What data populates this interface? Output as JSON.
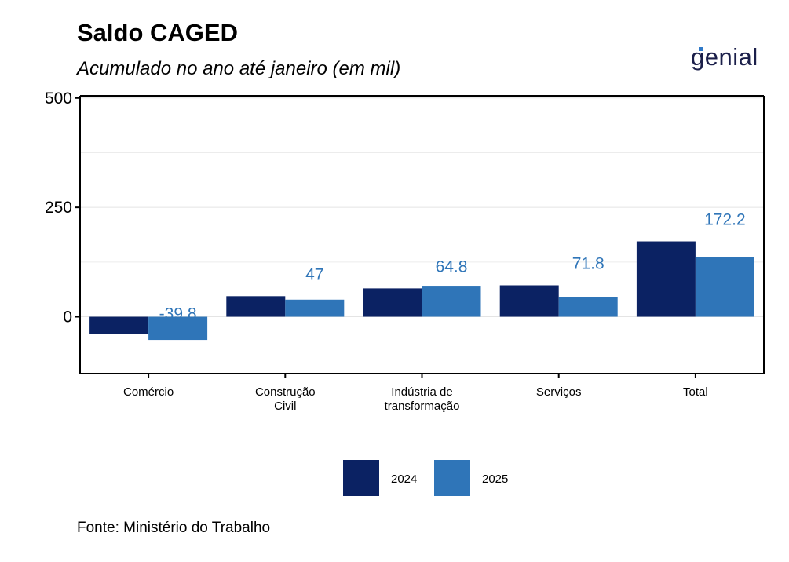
{
  "header": {
    "title": "Saldo CAGED",
    "subtitle": "Acumulado no ano até janeiro (em mil)",
    "logo": "genial"
  },
  "footer": {
    "source": "Fonte: Ministério do Trabalho"
  },
  "colors": {
    "s2024": "#0b2263",
    "s2025": "#2f75b8",
    "label": "#2f75b8"
  },
  "chart_data": {
    "type": "bar",
    "title": "Saldo CAGED",
    "subtitle": "Acumulado no ano até janeiro (em mil)",
    "categories": [
      [
        "Comércio"
      ],
      [
        "Construção",
        "Civil"
      ],
      [
        "Indústria de",
        "transformação"
      ],
      [
        "Serviços"
      ],
      [
        "Total"
      ]
    ],
    "series": [
      {
        "name": "2024",
        "values": [
          -39.8,
          47,
          64.8,
          71.8,
          172.2
        ]
      },
      {
        "name": "2025",
        "values": [
          -53,
          39,
          69,
          44,
          137
        ]
      }
    ],
    "data_labels": [
      "-39.8",
      "47",
      "64.8",
      "71.8",
      "172.2"
    ],
    "yticks": [
      0,
      250,
      500
    ],
    "ylim": [
      -130,
      505
    ],
    "xlabel": "",
    "ylabel": "",
    "legend": "bottom",
    "grid": true
  }
}
